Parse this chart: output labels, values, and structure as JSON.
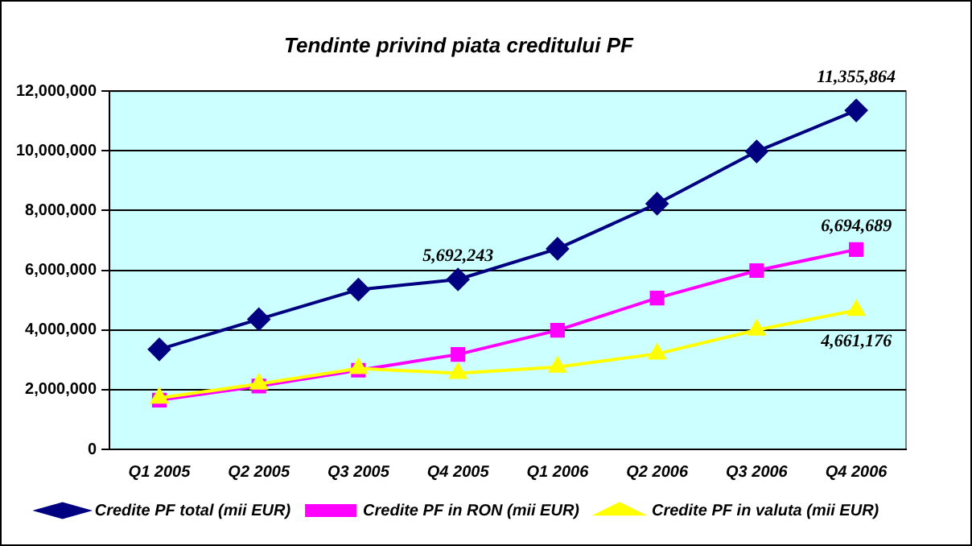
{
  "chart_data": {
    "type": "line",
    "title": "Tendinte privind piata creditului PF",
    "categories": [
      "Q1 2005",
      "Q2 2005",
      "Q3 2005",
      "Q4 2005",
      "Q1 2006",
      "Q2 2006",
      "Q3 2006",
      "Q4 2006"
    ],
    "series": [
      {
        "name": "Credite PF total (mii EUR)",
        "color": "#000080",
        "marker": "diamond",
        "values": [
          3350000,
          4360000,
          5350000,
          5692243,
          6720000,
          8230000,
          9980000,
          11355864
        ],
        "value_labels": [
          null,
          null,
          null,
          "5,692,243",
          null,
          null,
          null,
          "11,355,864"
        ]
      },
      {
        "name": "Credite PF in RON (mii EUR)",
        "color": "#ff00ff",
        "marker": "square",
        "values": [
          1650000,
          2120000,
          2650000,
          3180000,
          3990000,
          5070000,
          5990000,
          6694689
        ],
        "value_labels": [
          null,
          null,
          null,
          null,
          null,
          null,
          null,
          "6,694,689"
        ]
      },
      {
        "name": "Credite PF in valuta (mii EUR)",
        "color": "#ffff00",
        "marker": "triangle",
        "values": [
          1720000,
          2190000,
          2710000,
          2550000,
          2760000,
          3200000,
          4000000,
          4661176
        ],
        "value_labels": [
          null,
          null,
          null,
          null,
          null,
          null,
          null,
          "4,661,176"
        ]
      }
    ],
    "ylim": [
      0,
      12000000
    ],
    "yticks": [
      0,
      {
        "value": 2000000,
        "label": "2,000,000"
      },
      {
        "value": 4000000,
        "label": "4,000,000"
      },
      {
        "value": 6000000,
        "label": "6,000,000"
      },
      {
        "value": 8000000,
        "label": "8,000,000"
      },
      {
        "value": 10000000,
        "label": "10,000,000"
      },
      {
        "value": 12000000,
        "label": "12,000,000"
      }
    ],
    "grid": "y",
    "legend": "bottom",
    "line_style": "solid"
  }
}
